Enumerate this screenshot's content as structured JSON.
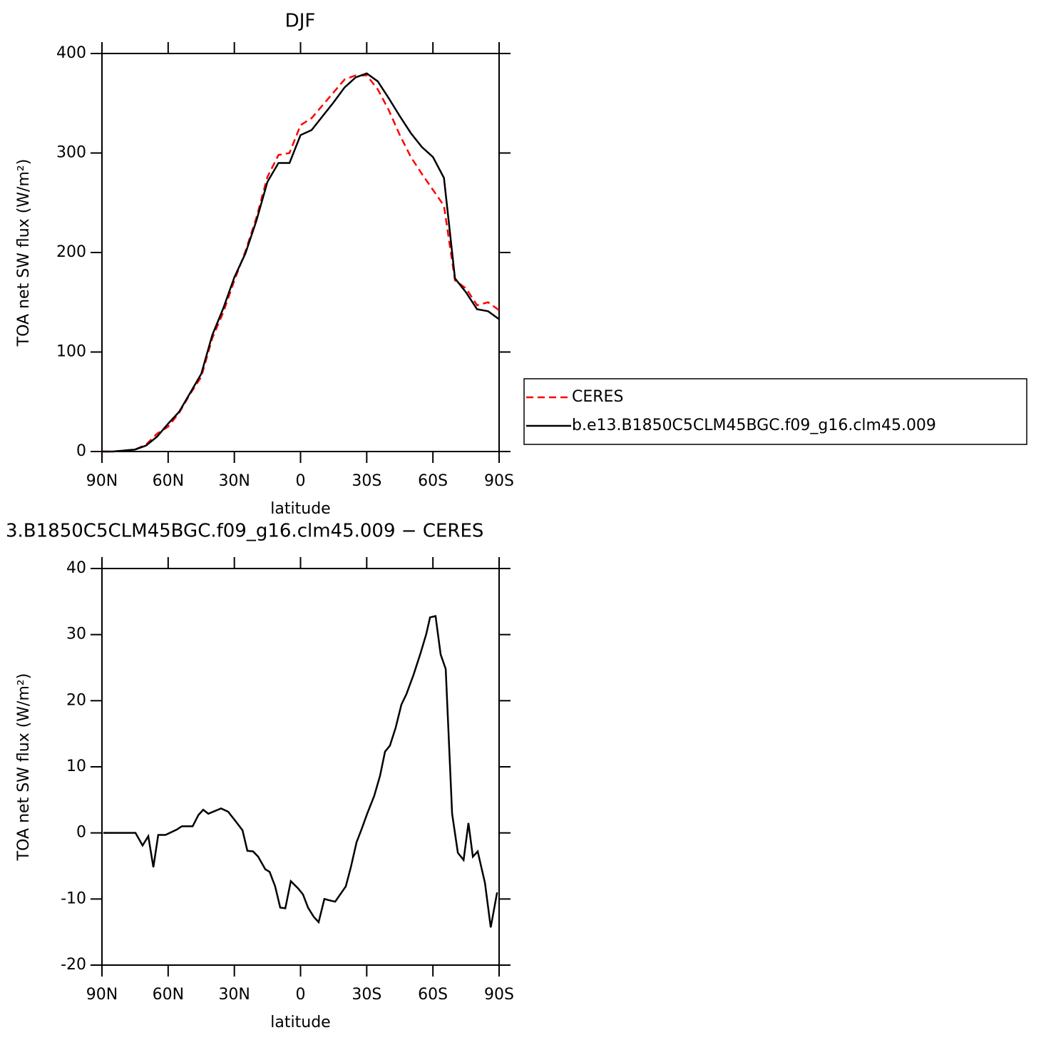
{
  "chart_data": [
    {
      "type": "line",
      "title": "DJF",
      "xlabel": "latitude",
      "ylabel": "TOA net SW flux (W/m²)",
      "x": [
        90,
        85,
        80,
        75,
        70,
        65,
        60,
        55,
        50,
        45,
        40,
        35,
        30,
        25,
        20,
        15,
        10,
        5,
        0,
        -5,
        -10,
        -15,
        -20,
        -25,
        -30,
        -35,
        -40,
        -45,
        -50,
        -55,
        -60,
        -65,
        -70,
        -75,
        -80,
        -85,
        -90
      ],
      "series": [
        {
          "name": "CERES",
          "color": "#ff0000",
          "linestyle": "dashed",
          "values": [
            0,
            0,
            1,
            2,
            7,
            18,
            25,
            39,
            58,
            75,
            114,
            140,
            172,
            201,
            235,
            276,
            298,
            300,
            328,
            335,
            348,
            361,
            374,
            378,
            378,
            364,
            343,
            318,
            296,
            279,
            263,
            247,
            172,
            164,
            147,
            150,
            142
          ]
        },
        {
          "name": "b.e13.B1850C5CLM45BGC.f09_g16.clm45.009",
          "color": "#000000",
          "linestyle": "solid",
          "values": [
            0,
            0,
            1,
            2,
            6,
            15,
            28,
            40,
            59,
            78,
            117,
            144,
            175,
            199,
            232,
            271,
            290,
            290,
            318,
            323,
            337,
            351,
            366,
            376,
            380,
            372,
            355,
            337,
            320,
            306,
            296,
            275,
            174,
            160,
            143,
            141,
            133
          ]
        }
      ],
      "xlim": [
        90,
        -90
      ],
      "xticks": [
        {
          "value": 90,
          "label": "90N"
        },
        {
          "value": 60,
          "label": "60N"
        },
        {
          "value": 30,
          "label": "30N"
        },
        0,
        {
          "value": -30,
          "label": "30S"
        },
        {
          "value": -60,
          "label": "60S"
        },
        {
          "value": -90,
          "label": "90S"
        }
      ],
      "ylim": [
        0,
        400
      ],
      "yticks": [
        0,
        100,
        200,
        300,
        400
      ],
      "legend": "right"
    },
    {
      "type": "line",
      "title": "3.B1850C5CLM45BGC.f09_g16.clm45.009 − CERES",
      "xlabel": "latitude",
      "ylabel": "TOA net SW flux (W/m²)",
      "x": [
        89.4,
        74.8,
        71.6,
        69.0,
        66.7,
        64.5,
        61.2,
        56.1,
        53.8,
        48.9,
        46.3,
        44.1,
        41.8,
        36.0,
        32.8,
        29.5,
        26.3,
        24.1,
        21.5,
        19.2,
        16.0,
        14.0,
        11.5,
        9.2,
        6.9,
        4.4,
        1.1,
        -1.1,
        -3.4,
        -6.0,
        -8.2,
        -10.8,
        -13.1,
        -15.7,
        -20.5,
        -22.8,
        -25.4,
        -27.6,
        -30.2,
        -33.4,
        -36.0,
        -38.3,
        -40.5,
        -43.1,
        -45.7,
        -48.0,
        -51.2,
        -54.4,
        -57.0,
        -58.7,
        -61.2,
        -63.5,
        -65.8,
        -68.7,
        -71.3,
        -73.9,
        -76.1,
        -78.1,
        -80.3,
        -83.6,
        -86.2,
        -89.1
      ],
      "values": [
        0,
        0,
        -1.9,
        -0.5,
        -5.2,
        -0.3,
        -0.3,
        0.5,
        1.0,
        1.0,
        2.7,
        3.5,
        2.9,
        3.7,
        3.2,
        1.8,
        0.4,
        -2.7,
        -2.8,
        -3.6,
        -5.5,
        -5.9,
        -8.1,
        -11.3,
        -11.4,
        -7.3,
        -8.4,
        -9.3,
        -11.3,
        -12.7,
        -13.5,
        -10.0,
        -10.2,
        -10.4,
        -8.1,
        -5.2,
        -1.4,
        0.5,
        2.9,
        5.6,
        8.6,
        12.3,
        13.2,
        15.9,
        19.4,
        21.0,
        23.9,
        27.2,
        30.1,
        32.6,
        32.8,
        27.0,
        24.8,
        2.9,
        -3.0,
        -4.1,
        1.5,
        -3.6,
        -2.8,
        -7.6,
        -14.3,
        -9.0
      ],
      "color": "#000000",
      "xlim": [
        90,
        -90
      ],
      "xticks": [
        {
          "value": 90,
          "label": "90N"
        },
        {
          "value": 60,
          "label": "60N"
        },
        {
          "value": 30,
          "label": "30N"
        },
        0,
        {
          "value": -30,
          "label": "30S"
        },
        {
          "value": -60,
          "label": "60S"
        },
        {
          "value": -90,
          "label": "90S"
        }
      ],
      "ylim": [
        -20,
        40
      ],
      "yticks": [
        -20,
        -10,
        0,
        10,
        20,
        30,
        40
      ]
    }
  ]
}
